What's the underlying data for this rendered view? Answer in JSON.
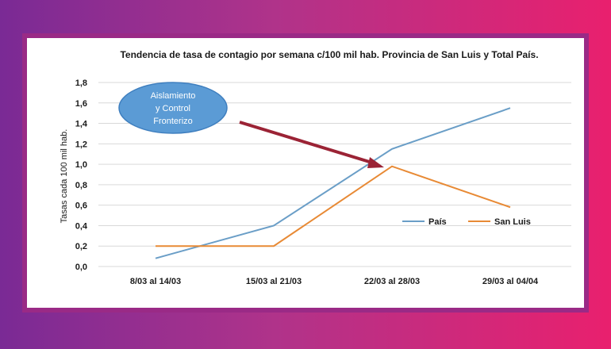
{
  "chart_data": {
    "type": "line",
    "title": "Tendencia de tasa de contagio por semana c/100 mil hab.  Provincia de San Luis y Total País.",
    "xlabel": "",
    "ylabel": "Tasas cada 100 mil hab.",
    "categories": [
      "8/03 al 14/03",
      "15/03 al 21/03",
      "22/03 al 28/03",
      "29/03 al 04/04"
    ],
    "ylim": [
      0,
      1.8
    ],
    "yticks": [
      "0,0",
      "0,2",
      "0,4",
      "0,6",
      "0,8",
      "1,0",
      "1,2",
      "1,4",
      "1,6",
      "1,8"
    ],
    "grid": true,
    "legend_position": "right",
    "series": [
      {
        "name": "País",
        "color": "#6a9ec7",
        "values": [
          0.08,
          0.4,
          1.15,
          1.55
        ]
      },
      {
        "name": "San Luis",
        "color": "#e88a35",
        "values": [
          0.2,
          0.2,
          0.98,
          0.58
        ]
      }
    ],
    "annotation": {
      "lines": [
        "Aislamiento",
        "y Control",
        "Fronterizo"
      ],
      "bubble_color": "#5b9bd5",
      "arrow_color": "#9b2335"
    }
  }
}
